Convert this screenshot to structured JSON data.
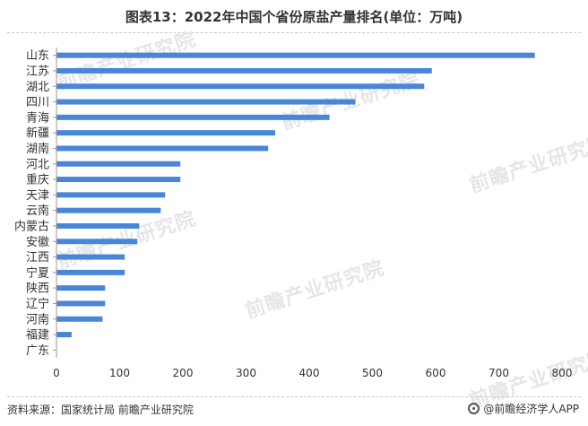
{
  "header": {
    "title": "图表13：2022年中国个省份原盐产量排名(单位：万吨)"
  },
  "watermark": {
    "text": "前瞻产业研究院"
  },
  "footer": {
    "source": "资料来源：国家统计局 前瞻产业研究院",
    "brand": "@前瞻经济学人APP"
  },
  "colors": {
    "bar": "#4a86d8",
    "axis": "#999999",
    "text": "#333333"
  },
  "chart_data": {
    "type": "bar",
    "orientation": "horizontal",
    "title": "图表13：2022年中国个省份原盐产量排名(单位：万吨)",
    "categories": [
      "山东",
      "江苏",
      "湖北",
      "四川",
      "青海",
      "新疆",
      "湖南",
      "河北",
      "重庆",
      "天津",
      "云南",
      "内蒙古",
      "安徽",
      "江西",
      "宁夏",
      "陕西",
      "辽宁",
      "河南",
      "福建",
      "广东"
    ],
    "values": [
      757,
      594,
      582,
      473,
      432,
      346,
      335,
      196,
      196,
      172,
      165,
      131,
      128,
      108,
      108,
      77,
      77,
      73,
      24,
      0
    ],
    "xlim": [
      0,
      800
    ],
    "xticks": [
      0,
      100,
      200,
      300,
      400,
      500,
      600,
      700,
      800
    ],
    "grid": false,
    "legend": "none"
  }
}
